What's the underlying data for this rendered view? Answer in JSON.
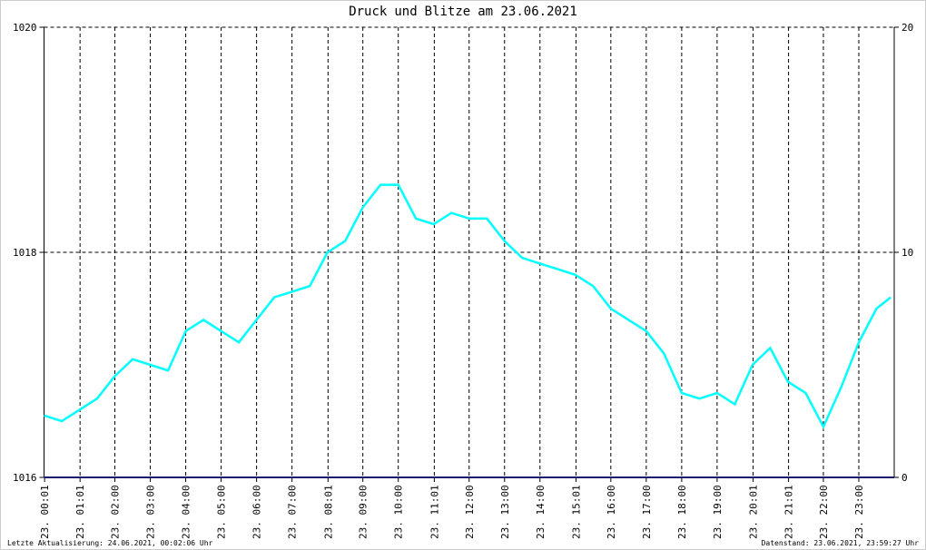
{
  "chart_data": {
    "type": "line",
    "title_connector": "und",
    "title_suffix": "am 23.06.2021",
    "footer_left": "Letzte Aktualisierung: 24.06.2021, 00:02:06 Uhr",
    "footer_right": "Datenstand: 23.06.2021, 23:59:27 Uhr",
    "xlim": [
      0,
      24
    ],
    "xticks": [
      {
        "value": 0.0167,
        "label": "23. 00:01"
      },
      {
        "value": 1.0167,
        "label": "23. 01:01"
      },
      {
        "value": 2,
        "label": "23. 02:00"
      },
      {
        "value": 3,
        "label": "23. 03:00"
      },
      {
        "value": 4,
        "label": "23. 04:00"
      },
      {
        "value": 5,
        "label": "23. 05:00"
      },
      {
        "value": 6,
        "label": "23. 06:00"
      },
      {
        "value": 7,
        "label": "23. 07:00"
      },
      {
        "value": 8.0167,
        "label": "23. 08:01"
      },
      {
        "value": 9,
        "label": "23. 09:00"
      },
      {
        "value": 10,
        "label": "23. 10:00"
      },
      {
        "value": 11.0167,
        "label": "23. 11:01"
      },
      {
        "value": 12,
        "label": "23. 12:00"
      },
      {
        "value": 13,
        "label": "23. 13:00"
      },
      {
        "value": 14,
        "label": "23. 14:00"
      },
      {
        "value": 15.0167,
        "label": "23. 15:01"
      },
      {
        "value": 16,
        "label": "23. 16:00"
      },
      {
        "value": 17,
        "label": "23. 17:00"
      },
      {
        "value": 18,
        "label": "23. 18:00"
      },
      {
        "value": 19,
        "label": "23. 19:00"
      },
      {
        "value": 20.0167,
        "label": "23. 20:01"
      },
      {
        "value": 21.0167,
        "label": "23. 21:01"
      },
      {
        "value": 22,
        "label": "23. 22:00"
      },
      {
        "value": 23,
        "label": "23. 23:00"
      }
    ],
    "ylim": [
      1016,
      1020
    ],
    "yticks": [
      1016,
      1018,
      1020
    ],
    "y2lim": [
      0,
      20
    ],
    "y2ticks": [
      0,
      10,
      20
    ],
    "grid": true,
    "series": [
      {
        "name": "Druck",
        "color": "#00ffff",
        "x": [
          0,
          0.5,
          1,
          1.5,
          2,
          2.5,
          3,
          3.5,
          4,
          4.5,
          5,
          5.5,
          6,
          6.5,
          7,
          7.5,
          8,
          8.5,
          9,
          9.5,
          10,
          10.5,
          11,
          11.5,
          12,
          12.5,
          13,
          13.5,
          14,
          14.5,
          15,
          15.5,
          16,
          16.5,
          17,
          17.5,
          18,
          18.5,
          19,
          19.5,
          20,
          20.5,
          21,
          21.5,
          22,
          22.5,
          23,
          23.5,
          23.9
        ],
        "values": [
          1016.55,
          1016.5,
          1016.6,
          1016.7,
          1016.9,
          1017.05,
          1017.0,
          1016.95,
          1017.3,
          1017.4,
          1017.3,
          1017.2,
          1017.4,
          1017.6,
          1017.65,
          1017.7,
          1018.0,
          1018.1,
          1018.4,
          1018.6,
          1018.6,
          1018.3,
          1018.25,
          1018.35,
          1018.3,
          1018.3,
          1018.1,
          1017.95,
          1017.9,
          1017.85,
          1017.8,
          1017.7,
          1017.5,
          1017.4,
          1017.3,
          1017.1,
          1016.75,
          1016.7,
          1016.75,
          1016.65,
          1017.0,
          1017.15,
          1016.85,
          1016.75,
          1016.45,
          1016.8,
          1017.2,
          1017.5,
          1017.6
        ]
      },
      {
        "name": "Blitze",
        "color": "#1a1a6e",
        "axis": "y2",
        "x": [
          0,
          24
        ],
        "values": [
          0,
          0
        ]
      }
    ]
  }
}
